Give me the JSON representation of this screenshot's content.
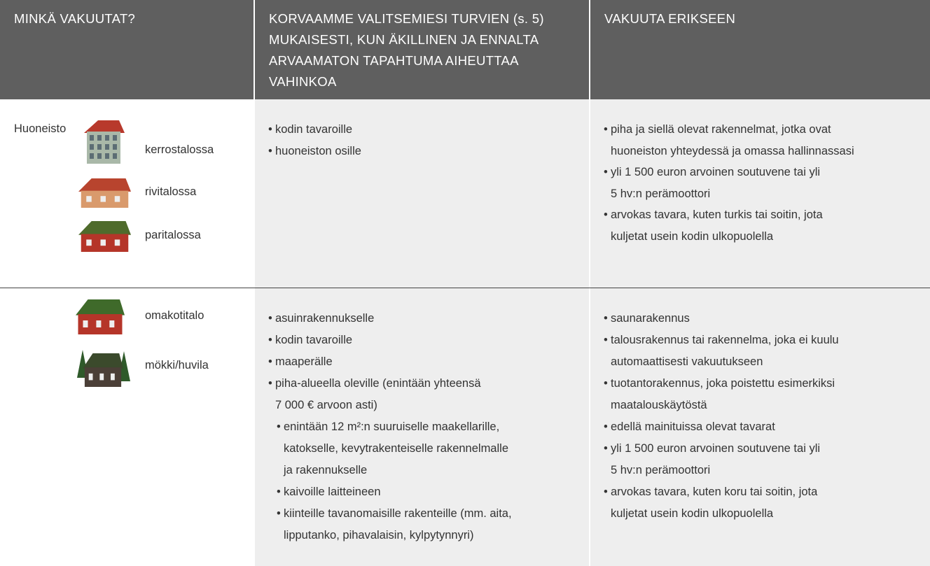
{
  "header": {
    "col1": [
      "MINKÄ VAKUUTAT?"
    ],
    "col2": [
      "KORVAAMME VALITSEMIESI TURVIEN (s. 5)",
      "MUKAISESTI, KUN ÄKILLINEN JA ENNALTA",
      "ARVAAMATON TAPAHTUMA AIHEUTTAA",
      "VAHINKOA"
    ],
    "col3": [
      "VAKUUTA ERIKSEEN"
    ]
  },
  "rows": [
    {
      "title": "Huoneisto",
      "types": [
        "kerrostalossa",
        "rivitalossa",
        "paritalossa"
      ],
      "covered": [
        {
          "lines": [
            "kodin tavaroille"
          ]
        },
        {
          "lines": [
            "huoneiston osille"
          ]
        }
      ],
      "separate": [
        {
          "lines": [
            "piha ja siellä olevat rakennelmat, jotka ovat",
            "huoneiston yhteydessä ja omassa hallinnassasi"
          ]
        },
        {
          "lines": [
            "yli 1 500 euron arvoinen soutuvene tai yli",
            "5 hv:n perämoottori"
          ]
        },
        {
          "lines": [
            "arvokas tavara, kuten turkis tai soitin, jota",
            "kuljetat usein kodin ulkopuolella"
          ]
        }
      ]
    },
    {
      "types": [
        "omakotitalo",
        "mökki/huvila"
      ],
      "covered": [
        {
          "lines": [
            "asuinrakennukselle"
          ]
        },
        {
          "lines": [
            "kodin tavaroille"
          ]
        },
        {
          "lines": [
            "maaperälle"
          ]
        },
        {
          "lines": [
            "piha-alueella oleville (enintään yhteensä",
            "7 000 € arvoon asti)"
          ],
          "items": [
            {
              "lines": [
                "enintään 12 m²:n suuruiselle maakellarille,",
                "katokselle, kevytrakenteiselle rakennelmalle",
                "ja rakennukselle"
              ]
            },
            {
              "lines": [
                "kaivoille laitteineen"
              ]
            },
            {
              "lines": [
                "kiinteille tavanomaisille rakenteille (mm. aita,",
                "lipputanko, pihavalaisin, kylpytynnyri)"
              ]
            }
          ]
        }
      ],
      "separate": [
        {
          "lines": [
            "saunarakennus"
          ]
        },
        {
          "lines": [
            "talousrakennus tai rakennelma, joka ei kuulu",
            "automaattisesti vakuutukseen"
          ]
        },
        {
          "lines": [
            "tuotantorakennus, joka poistettu esimerkiksi",
            "maatalouskäytöstä"
          ]
        },
        {
          "lines": [
            "edellä mainituissa olevat tavarat"
          ]
        },
        {
          "lines": [
            "yli 1 500 euron arvoinen soutuvene tai yli",
            "5 hv:n perämoottori"
          ]
        },
        {
          "lines": [
            "arvokas tavara, kuten koru tai soitin, jota",
            "kuljetat usein kodin ulkopuolella"
          ]
        }
      ]
    }
  ]
}
